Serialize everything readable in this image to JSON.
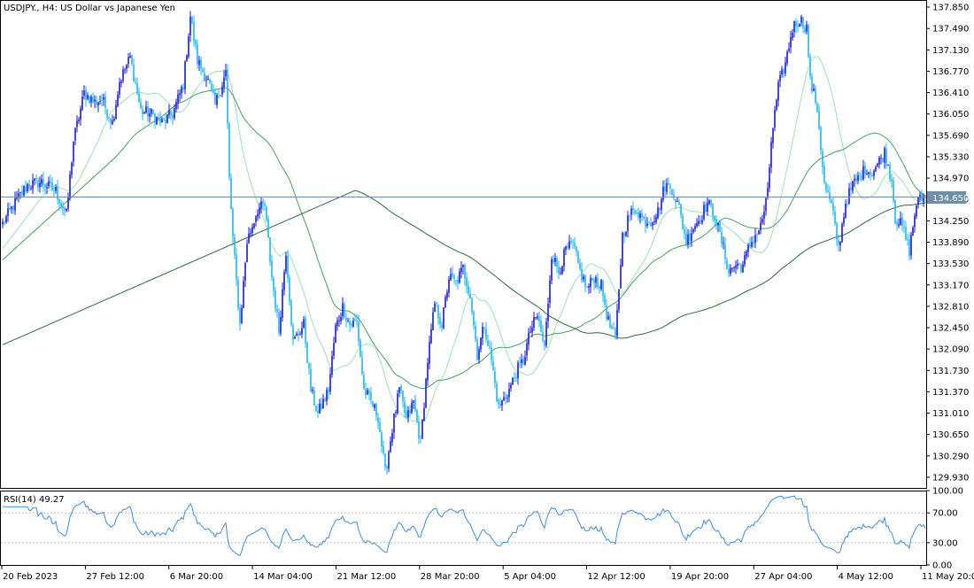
{
  "window": {
    "symbol_title": "USDJPY., H4:  US Dollar vs Japanese Yen",
    "current_price_label": "134.650"
  },
  "colors": {
    "bull_candle": "#1a1acd",
    "bear_candle": "#1fb7ef",
    "price_line": "#6f8fa6",
    "ma_fast": "#9be3b5",
    "ma_mid": "#45a060",
    "ma_slow": "#2e6a3f",
    "rsi_line": "#3c8ede",
    "grid_dotted": "#c0c0c0",
    "axis": "#000000"
  },
  "chart_data": [
    {
      "type": "candlestick",
      "title": "USDJPY., H4:  US Dollar vs Japanese Yen",
      "ylim": [
        129.75,
        137.97
      ],
      "y_ticks": [
        "137.850",
        "137.490",
        "137.130",
        "136.770",
        "136.410",
        "136.050",
        "135.690",
        "135.330",
        "134.970",
        "134.610",
        "134.250",
        "133.890",
        "133.530",
        "133.170",
        "132.810",
        "132.450",
        "132.090",
        "131.730",
        "131.370",
        "131.010",
        "130.650",
        "130.290",
        "129.930"
      ],
      "x_labels": [
        "20 Feb 2023",
        "27 Feb 12:00",
        "6 Mar 20:00",
        "14 Mar 04:00",
        "21 Mar 12:00",
        "28 Mar 20:00",
        "5 Apr 04:00",
        "12 Apr 12:00",
        "19 Apr 20:00",
        "27 Apr 04:00",
        "4 May 12:00",
        "11 May 20:00"
      ],
      "current_price": 134.65,
      "close_anchors": [
        [
          0,
          134.2
        ],
        [
          4,
          134.4
        ],
        [
          8,
          134.6
        ],
        [
          14,
          134.85
        ],
        [
          22,
          134.9
        ],
        [
          30,
          134.75
        ],
        [
          36,
          134.35
        ],
        [
          40,
          135.6
        ],
        [
          46,
          136.4
        ],
        [
          52,
          136.25
        ],
        [
          56,
          136.3
        ],
        [
          62,
          135.9
        ],
        [
          66,
          136.6
        ],
        [
          72,
          137.0
        ],
        [
          78,
          136.1
        ],
        [
          84,
          136.05
        ],
        [
          90,
          135.9
        ],
        [
          96,
          136.05
        ],
        [
          102,
          136.55
        ],
        [
          106,
          137.7
        ],
        [
          110,
          136.95
        ],
        [
          116,
          136.6
        ],
        [
          120,
          136.2
        ],
        [
          126,
          136.75
        ],
        [
          128,
          134.95
        ],
        [
          130,
          133.95
        ],
        [
          134,
          132.5
        ],
        [
          138,
          133.9
        ],
        [
          144,
          134.45
        ],
        [
          148,
          134.5
        ],
        [
          152,
          133.3
        ],
        [
          156,
          132.4
        ],
        [
          160,
          133.75
        ],
        [
          164,
          132.2
        ],
        [
          170,
          132.5
        ],
        [
          174,
          131.4
        ],
        [
          178,
          131.0
        ],
        [
          184,
          131.4
        ],
        [
          188,
          132.45
        ],
        [
          192,
          132.8
        ],
        [
          196,
          132.5
        ],
        [
          200,
          132.55
        ],
        [
          204,
          131.4
        ],
        [
          208,
          131.2
        ],
        [
          212,
          130.95
        ],
        [
          216,
          130.0
        ],
        [
          220,
          130.75
        ],
        [
          224,
          131.4
        ],
        [
          228,
          130.9
        ],
        [
          232,
          131.2
        ],
        [
          236,
          130.5
        ],
        [
          240,
          131.9
        ],
        [
          244,
          132.85
        ],
        [
          248,
          132.5
        ],
        [
          252,
          133.3
        ],
        [
          256,
          133.2
        ],
        [
          260,
          133.45
        ],
        [
          264,
          133.0
        ],
        [
          268,
          132.0
        ],
        [
          272,
          132.5
        ],
        [
          276,
          131.9
        ],
        [
          280,
          131.1
        ],
        [
          286,
          131.4
        ],
        [
          290,
          131.7
        ],
        [
          294,
          131.9
        ],
        [
          298,
          132.4
        ],
        [
          302,
          132.65
        ],
        [
          306,
          132.1
        ],
        [
          310,
          133.7
        ],
        [
          314,
          133.4
        ],
        [
          318,
          133.75
        ],
        [
          322,
          133.85
        ],
        [
          326,
          133.4
        ],
        [
          330,
          133.1
        ],
        [
          334,
          133.3
        ],
        [
          338,
          133.15
        ],
        [
          342,
          132.55
        ],
        [
          346,
          132.25
        ],
        [
          350,
          134.0
        ],
        [
          354,
          134.35
        ],
        [
          358,
          134.45
        ],
        [
          362,
          134.25
        ],
        [
          366,
          134.25
        ],
        [
          370,
          134.4
        ],
        [
          374,
          134.85
        ],
        [
          378,
          134.8
        ],
        [
          382,
          134.45
        ],
        [
          386,
          133.9
        ],
        [
          390,
          134.15
        ],
        [
          394,
          134.3
        ],
        [
          398,
          134.55
        ],
        [
          402,
          134.35
        ],
        [
          406,
          133.9
        ],
        [
          410,
          133.4
        ],
        [
          414,
          133.5
        ],
        [
          418,
          133.5
        ],
        [
          422,
          133.85
        ],
        [
          428,
          134.15
        ],
        [
          432,
          134.7
        ],
        [
          434,
          135.6
        ],
        [
          438,
          136.5
        ],
        [
          442,
          136.9
        ],
        [
          446,
          137.5
        ],
        [
          450,
          137.65
        ],
        [
          454,
          137.5
        ],
        [
          456,
          136.6
        ],
        [
          460,
          136.15
        ],
        [
          462,
          135.5
        ],
        [
          464,
          134.85
        ],
        [
          468,
          134.5
        ],
        [
          472,
          133.8
        ],
        [
          476,
          134.55
        ],
        [
          480,
          134.85
        ],
        [
          484,
          135.0
        ],
        [
          488,
          135.15
        ],
        [
          490,
          135.05
        ],
        [
          494,
          135.2
        ],
        [
          498,
          135.4
        ],
        [
          502,
          134.95
        ],
        [
          504,
          134.3
        ],
        [
          508,
          134.15
        ],
        [
          512,
          133.75
        ],
        [
          516,
          134.55
        ],
        [
          518,
          134.6
        ],
        [
          520,
          134.65
        ]
      ]
    },
    {
      "type": "line",
      "indicator_label": "RSI(14) 49.27",
      "ylim": [
        0,
        100
      ],
      "y_ticks": [
        "100.00",
        "70.00",
        "30.00",
        "0.00"
      ],
      "levels": [
        70,
        30
      ],
      "last_value": 49.27
    }
  ]
}
